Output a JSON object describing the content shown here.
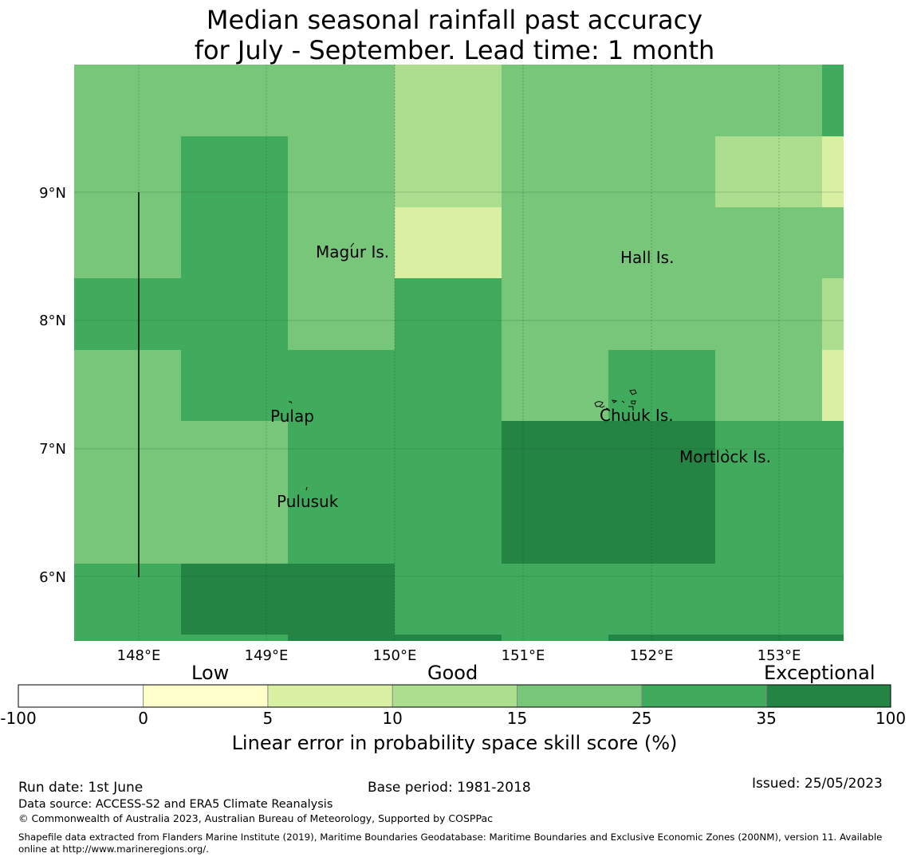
{
  "title_line1": "Median seasonal rainfall past accuracy",
  "title_line2": "for July - September. Lead time: 1 month",
  "map": {
    "x_ticks": [
      "148°E",
      "149°E",
      "150°E",
      "151°E",
      "152°E",
      "153°E"
    ],
    "y_ticks": [
      "9°N",
      "8°N",
      "7°N",
      "6°N"
    ],
    "islands": [
      "Magur Is.",
      "Hall Is.",
      "Pulap",
      "Chuuk Is.",
      "Mortlock Is.",
      "Pulusuk"
    ],
    "colors": {
      "c1": "#d9f0a3",
      "c2": "#addd8e",
      "c3": "#78c679",
      "c4": "#41ab5d",
      "c5": "#238443"
    }
  },
  "colorbar": {
    "categories": [
      "Low",
      "Good",
      "Exceptional"
    ],
    "ticks": [
      "-100",
      "0",
      "5",
      "10",
      "15",
      "25",
      "35",
      "100"
    ],
    "colors": [
      "#ffffff",
      "#ffffcc",
      "#d9f0a3",
      "#addd8e",
      "#78c679",
      "#41ab5d",
      "#238443"
    ],
    "title": "Linear error in probability space skill score (%)"
  },
  "footer": {
    "run_date": "Run date: 1st June",
    "base_period": "Base period: 1981-2018",
    "issued": "Issued: 25/05/2023",
    "data_source": "Data source: ACCESS-S2 and ERA5 Climate Reanalysis",
    "copyright": "© Commonwealth of Australia 2023, Australian Bureau of Meteorology, Supported by COSPPac",
    "shapefile_1": "Shapefile data extracted from Flanders Marine Institute (2019), Maritime Boundaries Geodatabase: Maritime Boundaries and Exclusive Economic Zones (200NM), version 11. Available",
    "shapefile_2": "online at http://www.marineregions.org/."
  }
}
